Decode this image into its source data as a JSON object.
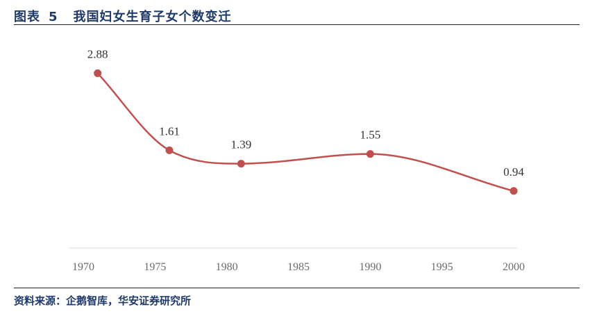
{
  "header": {
    "figure_label": "图表",
    "figure_number": "5",
    "title": "我国妇女生育子女个数变迁"
  },
  "footer": {
    "source": "资料来源：企鹅智库，华安证券研究所"
  },
  "chart_data": {
    "type": "line",
    "title": "我国妇女生育子女个数变迁",
    "xlabel": "",
    "ylabel": "",
    "x_ticks": [
      1970,
      1975,
      1980,
      1985,
      1990,
      1995,
      2000
    ],
    "xlim": [
      1970,
      2000
    ],
    "ylim": [
      0,
      3.4
    ],
    "grid": false,
    "legend": "none",
    "series": [
      {
        "x": [
          1971,
          1976,
          1981,
          1990,
          2000
        ],
        "values": [
          2.88,
          1.61,
          1.39,
          1.55,
          0.94
        ],
        "labels": [
          "2.88",
          "1.61",
          "1.39",
          "1.55",
          "0.94"
        ],
        "color": "#c0504d",
        "smooth": true
      }
    ]
  }
}
